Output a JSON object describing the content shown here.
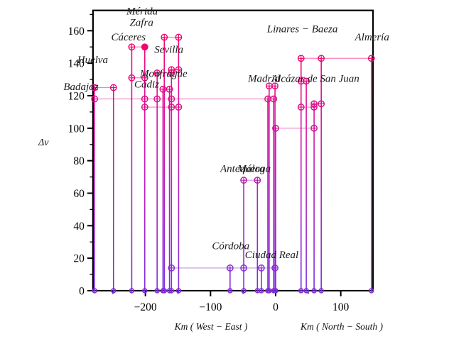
{
  "chart_data": {
    "type": "scatter",
    "subtype": "stem-plot",
    "title": "",
    "ylabel": "Δv",
    "xlabel_west_east": "Km ( West − East )",
    "xlabel_north_south": "Km ( North − South )",
    "xlim": [
      -280.5,
      149.5
    ],
    "ylim": [
      0,
      172.5
    ],
    "grid": false,
    "x_major_ticks": [
      {
        "v": -200,
        "label": "−200"
      },
      {
        "v": -100,
        "label": "−100"
      },
      {
        "v": 0,
        "label": "0"
      },
      {
        "v": 100,
        "label": "100"
      }
    ],
    "x_minor_ticks": [
      -250,
      -150,
      -50,
      50
    ],
    "y_major_ticks": [
      0,
      20,
      40,
      60,
      80,
      100,
      120,
      140,
      160
    ],
    "y_minor_ticks": [
      10,
      30,
      50,
      70,
      90,
      110,
      130,
      150,
      170
    ],
    "colors": {
      "stem_bottom": "#7B2EE0",
      "stem_top": "#FF0066",
      "frame": "#000000",
      "text": "#1a1a1a"
    },
    "stems": [
      {
        "x": -278,
        "top": 125
      },
      {
        "x": -249,
        "top": 125
      },
      {
        "x": -221,
        "top": 150
      },
      {
        "x": -201,
        "top": 150
      },
      {
        "x": -182,
        "top": 134
      },
      {
        "x": -173,
        "top": 124
      },
      {
        "x": -171,
        "top": 156
      },
      {
        "x": -163,
        "top": 124
      },
      {
        "x": -160,
        "top": 136
      },
      {
        "x": -149,
        "top": 156
      },
      {
        "x": -70,
        "top": 14
      },
      {
        "x": -49,
        "top": 68
      },
      {
        "x": -28,
        "top": 68
      },
      {
        "x": -22,
        "top": 14
      },
      {
        "x": -12,
        "top": 118
      },
      {
        "x": -10,
        "top": 126
      },
      {
        "x": -3,
        "top": 118
      },
      {
        "x": -1,
        "top": 126
      },
      {
        "x": 0,
        "top": 100
      },
      {
        "x": 39,
        "top": 143
      },
      {
        "x": 47,
        "top": 129
      },
      {
        "x": 59,
        "top": 115
      },
      {
        "x": 70,
        "top": 143
      },
      {
        "x": 147,
        "top": 143
      }
    ],
    "segments": [
      {
        "dv": 156,
        "x1": -171,
        "x2": -149,
        "markers": [
          -171,
          -149
        ]
      },
      {
        "dv": 150,
        "x1": -221,
        "x2": -201,
        "markers": [
          -221,
          -201
        ]
      },
      {
        "dv": 136,
        "x1": -160,
        "x2": -149,
        "markers": [
          -160,
          -149
        ]
      },
      {
        "dv": 134,
        "x1": -182,
        "x2": -160,
        "markers": [
          -182,
          -160
        ]
      },
      {
        "dv": 131,
        "x1": -221,
        "x2": -201,
        "markers": [
          -221,
          -201
        ]
      },
      {
        "dv": 125,
        "x1": -278,
        "x2": -249,
        "markers": [
          -278,
          -249
        ]
      },
      {
        "dv": 124,
        "x1": -173,
        "x2": -163,
        "markers": [
          -173,
          -163
        ]
      },
      {
        "dv": 118,
        "x1": -278,
        "x2": -12,
        "markers": [
          -278,
          -201,
          -182,
          -160,
          -12,
          -3
        ]
      },
      {
        "dv": 113,
        "x1": -201,
        "x2": -149,
        "markers": [
          -201,
          -160,
          -149
        ]
      },
      {
        "dv": 143,
        "x1": 39,
        "x2": 147,
        "markers": [
          39,
          70,
          147
        ]
      },
      {
        "dv": 129,
        "x1": 39,
        "x2": 47,
        "markers": [
          39,
          47
        ]
      },
      {
        "dv": 126,
        "x1": -10,
        "x2": -1,
        "markers": [
          -10,
          -1
        ]
      },
      {
        "dv": 115,
        "x1": 59,
        "x2": 70,
        "markers": [
          59,
          70
        ]
      },
      {
        "dv": 113,
        "x1": 39,
        "x2": 59,
        "markers": [
          39,
          59
        ]
      },
      {
        "dv": 100,
        "x1": 0,
        "x2": 59,
        "markers": [
          0,
          59
        ]
      },
      {
        "dv": 68,
        "x1": -49,
        "x2": -28,
        "markers": [
          -49,
          -28
        ]
      },
      {
        "dv": 14,
        "x1": -160,
        "x2": -1,
        "markers": [
          -160,
          -70,
          -49,
          -22,
          -1
        ]
      }
    ],
    "solid_points": [
      {
        "x": -201,
        "dv": 150
      }
    ],
    "city_labels": [
      {
        "name": "Mérida",
        "x": -205,
        "dv": 170
      },
      {
        "name": "Zafra",
        "x": -206,
        "dv": 163
      },
      {
        "name": "Cáceres",
        "x": -226,
        "dv": 154
      },
      {
        "name": "Sevilla",
        "x": -164,
        "dv": 146.5
      },
      {
        "name": "Huelva",
        "x": -281,
        "dv": 140
      },
      {
        "name": "Monfragüe",
        "x": -172,
        "dv": 131.5
      },
      {
        "name": "Badajoz",
        "x": -299,
        "dv": 123.5
      },
      {
        "name": "Cádiz",
        "x": -198,
        "dv": 125
      },
      {
        "name": "Linares − Baeza",
        "x": 41,
        "dv": 159
      },
      {
        "name": "Almería",
        "x": 148,
        "dv": 154
      },
      {
        "name": "Madrid",
        "x": -18,
        "dv": 128.5
      },
      {
        "name": "Alcázar de San Juan",
        "x": 61,
        "dv": 128.5
      },
      {
        "name": "Antequera",
        "x": -51,
        "dv": 73
      },
      {
        "name": "Málaga",
        "x": -33,
        "dv": 73
      },
      {
        "name": "Córdoba",
        "x": -69,
        "dv": 25.5
      },
      {
        "name": "Ciudad Real",
        "x": -6,
        "dv": 20
      }
    ]
  }
}
